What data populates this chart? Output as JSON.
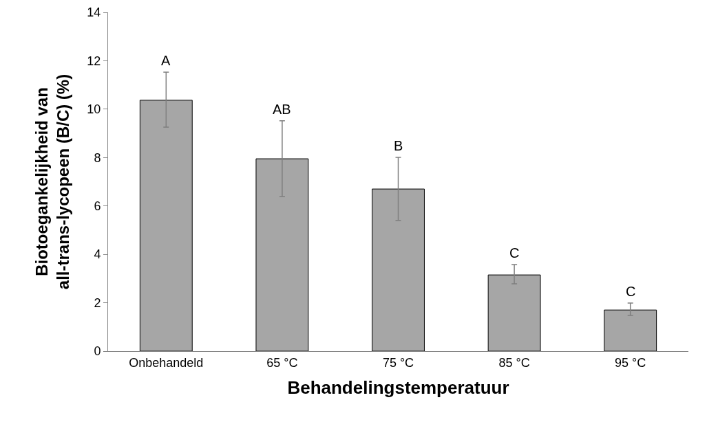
{
  "chart_data": {
    "type": "bar",
    "xlabel": "Behandelingstemperatuur",
    "ylabel": "Biotoegankelijkheid van\nall-trans-lycopeen (B/C) (%)",
    "categories": [
      "Onbehandeld",
      "65 °C",
      "75 °C",
      "85 °C",
      "95 °C"
    ],
    "values": [
      10.37,
      7.95,
      6.7,
      3.15,
      1.7
    ],
    "errors": [
      [
        9.26,
        11.53
      ],
      [
        6.39,
        9.52
      ],
      [
        5.4,
        8.01
      ],
      [
        2.78,
        3.58
      ],
      [
        1.48,
        1.99
      ]
    ],
    "color": "#a6a6a6",
    "ylim": [
      0,
      14
    ],
    "yticks": [
      0,
      2,
      4,
      6,
      8,
      10,
      12,
      14
    ],
    "grid": false,
    "annotations": [
      "A",
      "AB",
      "B",
      "C",
      "C"
    ]
  }
}
